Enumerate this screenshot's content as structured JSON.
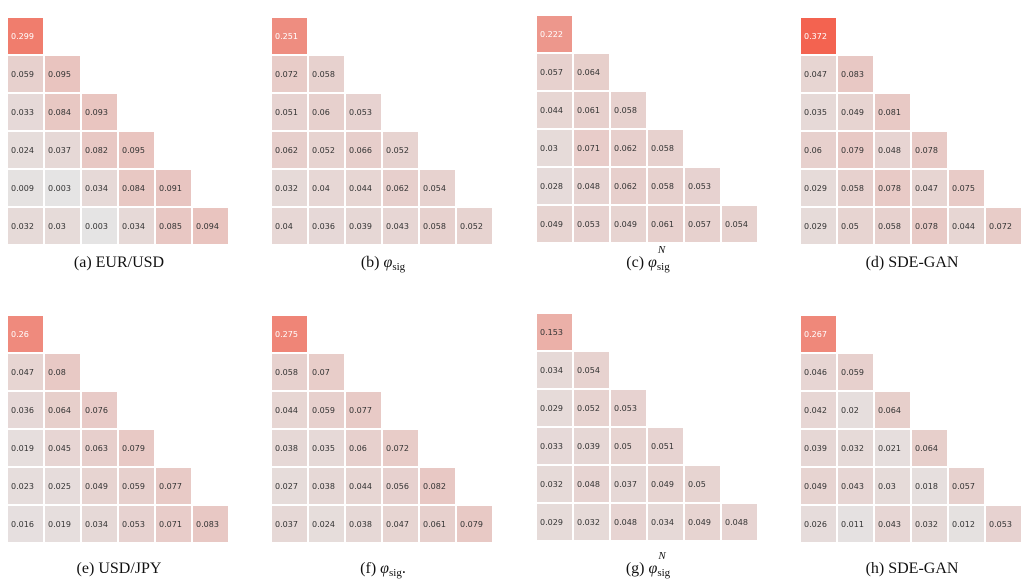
{
  "chart_data": [
    {
      "type": "heatmap",
      "caption_prefix": "(a) ",
      "caption_text": "EUR/USD",
      "values": [
        [
          0.299
        ],
        [
          0.059,
          0.095
        ],
        [
          0.033,
          0.084,
          0.093
        ],
        [
          0.024,
          0.037,
          0.082,
          0.095
        ],
        [
          0.009,
          0.003,
          0.034,
          0.084,
          0.091
        ],
        [
          0.032,
          0.03,
          0.003,
          0.034,
          0.085,
          0.094
        ]
      ]
    },
    {
      "type": "heatmap",
      "caption_prefix": "(b) ",
      "caption_symbol": "φ",
      "caption_sub": "sig",
      "caption_suffix": "",
      "values": [
        [
          0.251
        ],
        [
          0.072,
          0.058
        ],
        [
          0.051,
          0.06,
          0.053
        ],
        [
          0.062,
          0.052,
          0.066,
          0.052
        ],
        [
          0.032,
          0.04,
          0.044,
          0.062,
          0.054
        ],
        [
          0.04,
          0.036,
          0.039,
          0.043,
          0.058,
          0.052
        ]
      ]
    },
    {
      "type": "heatmap",
      "caption_prefix": "(c) ",
      "caption_symbol": "φ",
      "caption_sub": "sig",
      "caption_sup": "N",
      "values": [
        [
          0.222
        ],
        [
          0.057,
          0.064
        ],
        [
          0.044,
          0.061,
          0.058
        ],
        [
          0.03,
          0.071,
          0.062,
          0.058
        ],
        [
          0.028,
          0.048,
          0.062,
          0.058,
          0.053
        ],
        [
          0.049,
          0.053,
          0.049,
          0.061,
          0.057,
          0.054
        ]
      ]
    },
    {
      "type": "heatmap",
      "caption_prefix": "(d) ",
      "caption_text": "SDE-GAN",
      "values": [
        [
          0.372
        ],
        [
          0.047,
          0.083
        ],
        [
          0.035,
          0.049,
          0.081
        ],
        [
          0.06,
          0.079,
          0.048,
          0.078
        ],
        [
          0.029,
          0.058,
          0.078,
          0.047,
          0.075
        ],
        [
          0.029,
          0.05,
          0.058,
          0.078,
          0.044,
          0.072
        ]
      ]
    },
    {
      "type": "heatmap",
      "caption_prefix": "(e) ",
      "caption_text": "USD/JPY",
      "values": [
        [
          0.26
        ],
        [
          0.047,
          0.08
        ],
        [
          0.036,
          0.064,
          0.076
        ],
        [
          0.019,
          0.045,
          0.063,
          0.079
        ],
        [
          0.023,
          0.025,
          0.049,
          0.059,
          0.077
        ],
        [
          0.016,
          0.019,
          0.034,
          0.053,
          0.071,
          0.083
        ]
      ]
    },
    {
      "type": "heatmap",
      "caption_prefix": "(f) ",
      "caption_symbol": "φ",
      "caption_sub": "sig",
      "caption_suffix": ".",
      "values": [
        [
          0.275
        ],
        [
          0.058,
          0.07
        ],
        [
          0.044,
          0.059,
          0.077
        ],
        [
          0.038,
          0.035,
          0.06,
          0.072
        ],
        [
          0.027,
          0.038,
          0.044,
          0.056,
          0.082
        ],
        [
          0.037,
          0.024,
          0.038,
          0.047,
          0.061,
          0.079
        ]
      ]
    },
    {
      "type": "heatmap",
      "caption_prefix": "(g) ",
      "caption_symbol": "φ",
      "caption_sub": "sig",
      "caption_sup": "N",
      "values": [
        [
          0.153
        ],
        [
          0.034,
          0.054
        ],
        [
          0.029,
          0.052,
          0.053
        ],
        [
          0.033,
          0.039,
          0.05,
          0.051
        ],
        [
          0.032,
          0.048,
          0.037,
          0.049,
          0.05
        ],
        [
          0.029,
          0.032,
          0.048,
          0.034,
          0.049,
          0.048
        ]
      ]
    },
    {
      "type": "heatmap",
      "caption_prefix": "(h) ",
      "caption_text": "SDE-GAN",
      "values": [
        [
          0.267
        ],
        [
          0.046,
          0.059
        ],
        [
          0.042,
          0.02,
          0.064
        ],
        [
          0.039,
          0.032,
          0.021,
          0.064
        ],
        [
          0.049,
          0.043,
          0.03,
          0.018,
          0.057
        ],
        [
          0.026,
          0.011,
          0.043,
          0.032,
          0.012,
          0.053
        ]
      ]
    }
  ],
  "colors": {
    "low": "#e5e5e5",
    "high": "#f36350"
  },
  "color_scale_max": 0.372
}
